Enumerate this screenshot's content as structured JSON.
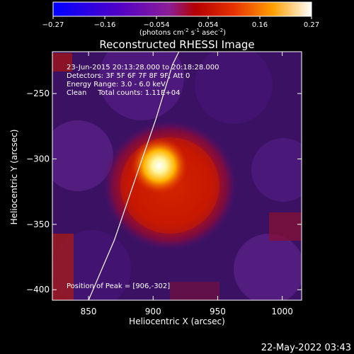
{
  "chart_data": {
    "type": "heatmap",
    "title": "Reconstructed RHESSI Image",
    "xlabel": "Heliocentric X (arcsec)",
    "ylabel": "Heliocentric Y (arcsec)",
    "xlim": [
      822,
      1015
    ],
    "ylim": [
      -408,
      -218
    ],
    "x_ticks": [
      850,
      900,
      950,
      1000
    ],
    "y_ticks": [
      -250,
      -300,
      -350,
      -400
    ],
    "colorbar": {
      "ticks": [
        "-0.27",
        "-0.16",
        "-0.054",
        "0.054",
        "0.16",
        "0.27"
      ],
      "unit_label": "(photons cm",
      "unit_exp1": "-2",
      "unit_mid": " s",
      "unit_exp2": "-1",
      "unit_mid2": " asec",
      "unit_exp3": "-2",
      "unit_close": ")",
      "range": [
        -0.27,
        0.27
      ]
    },
    "info_lines": [
      "23-Jun-2015 20:13:28.000 to 20:18:28.000",
      "Detectors: 3F 5F 6F 7F 8F 9F, Att 0",
      "Energy Range: 3.0 - 6.0 keV",
      "Clean     Total counts: 1.11E+04"
    ],
    "peak_label": "Position of Peak = [906,-302]",
    "peak": [
      906,
      -302
    ],
    "limb_curve": [
      [
        850,
        -408
      ],
      [
        870,
        -362
      ],
      [
        888,
        -310
      ],
      [
        902,
        -270
      ],
      [
        915,
        -228
      ],
      [
        920,
        -218
      ]
    ],
    "timestamp": "22-May-2022 03:43"
  }
}
